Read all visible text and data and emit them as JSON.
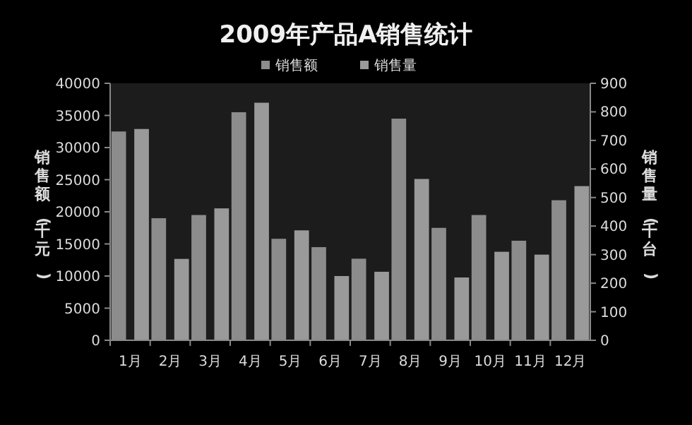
{
  "chart_data": {
    "type": "bar",
    "title": "2009年产品A销售统计",
    "ylabel": "销售额(千元)",
    "y2label": "销售量(千台)",
    "categories": [
      "1月",
      "2月",
      "3月",
      "4月",
      "5月",
      "6月",
      "7月",
      "8月",
      "9月",
      "10月",
      "11月",
      "12月"
    ],
    "series": [
      {
        "name": "销售额",
        "color": "#8c8c8c",
        "values": [
          32500,
          19000,
          19500,
          35500,
          15800,
          14500,
          12700,
          34500,
          17500,
          19500,
          15500,
          21800
        ]
      },
      {
        "name": "销售量",
        "color": "#9a9a9a",
        "axis": "y2",
        "values": [
          740,
          285,
          462,
          832,
          385,
          225,
          240,
          565,
          220,
          310,
          300,
          540
        ]
      }
    ],
    "ylim": [
      0,
      40000
    ],
    "yticks": [
      0,
      5000,
      10000,
      15000,
      20000,
      25000,
      30000,
      35000,
      40000
    ],
    "y2lim": [
      0,
      900
    ],
    "y2ticks": [
      0,
      100,
      200,
      300,
      400,
      500,
      600,
      700,
      800,
      900
    ],
    "legend": "top",
    "grid": false
  }
}
